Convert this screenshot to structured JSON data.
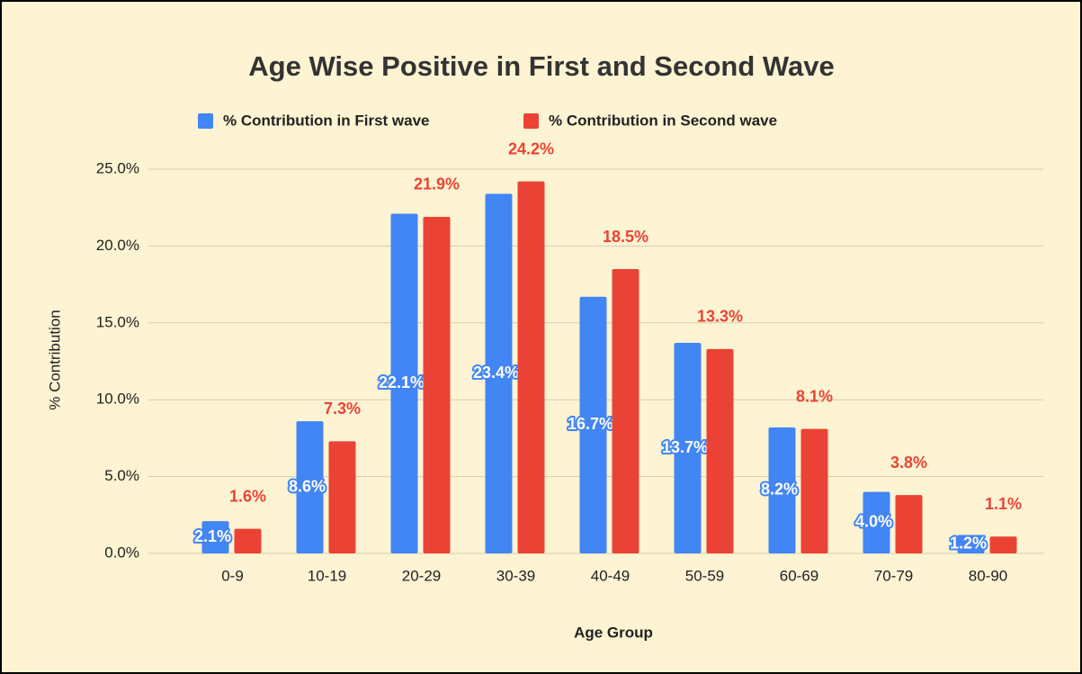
{
  "chart_data": {
    "type": "bar",
    "title": "Age Wise Positive in First and Second Wave",
    "x_label": "Age Group",
    "y_label": "% Contribution",
    "categories": [
      "0-9",
      "10-19",
      "20-29",
      "30-39",
      "40-49",
      "50-59",
      "60-69",
      "70-79",
      "80-90"
    ],
    "series": [
      {
        "name": "% Contribution in First wave",
        "color": "#4285f4",
        "values": [
          2.1,
          8.6,
          22.1,
          23.4,
          16.7,
          13.7,
          8.2,
          4.0,
          1.2
        ],
        "value_labels": [
          "2.1%",
          "8.6%",
          "22.1%",
          "23.4%",
          "16.7%",
          "13.7%",
          "8.2%",
          "4.0%",
          "1.2%"
        ]
      },
      {
        "name": "% Contribution in Second wave",
        "color": "#ea4335",
        "values": [
          1.6,
          7.3,
          21.9,
          24.2,
          18.5,
          13.3,
          8.1,
          3.8,
          1.1
        ],
        "value_labels": [
          "1.6%",
          "7.3%",
          "21.9%",
          "24.2%",
          "18.5%",
          "13.3%",
          "8.1%",
          "3.8%",
          "1.1%"
        ]
      }
    ],
    "ylim": [
      0,
      25
    ],
    "yticks": [
      {
        "value": 0,
        "label": "0.0%"
      },
      {
        "value": 5,
        "label": "5.0%"
      },
      {
        "value": 10,
        "label": "10.0%"
      },
      {
        "value": 15,
        "label": "15.0%"
      },
      {
        "value": 20,
        "label": "20.0%"
      },
      {
        "value": 25,
        "label": "25.0%"
      }
    ],
    "grid": true,
    "legend": "top"
  }
}
